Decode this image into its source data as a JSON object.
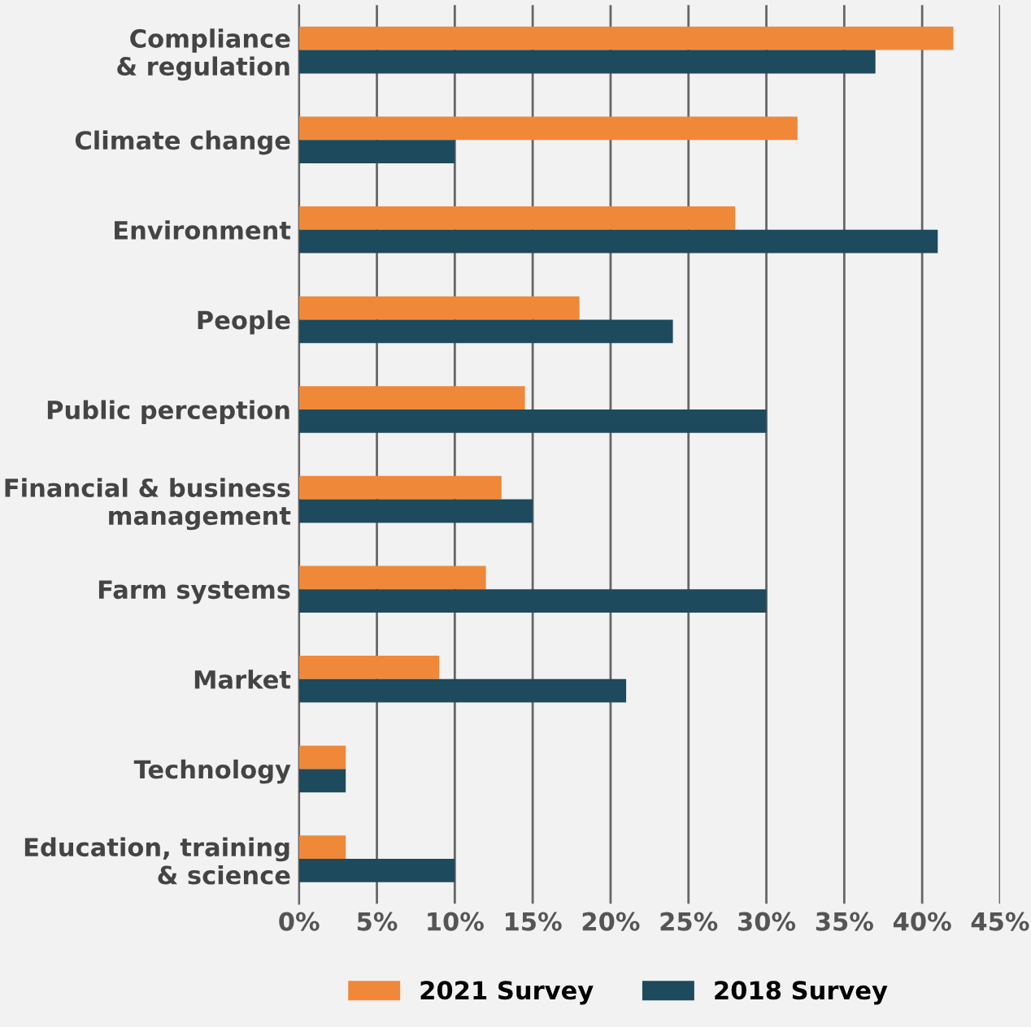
{
  "chart_data": {
    "type": "bar",
    "orientation": "horizontal",
    "categories": [
      "Compliance\n& regulation",
      "Climate change",
      "Environment",
      "People",
      "Public perception",
      "Financial & business\nmanagement",
      "Farm systems",
      "Market",
      "Technology",
      "Education, training\n& science"
    ],
    "series": [
      {
        "name": "2021 Survey",
        "color": "#f0883a",
        "values": [
          42,
          32,
          28,
          18,
          14.5,
          13,
          12,
          9,
          3,
          3
        ]
      },
      {
        "name": "2018 Survey",
        "color": "#1d4a5c",
        "values": [
          37,
          10,
          41,
          24,
          30,
          15,
          30,
          21,
          3,
          10
        ]
      }
    ],
    "xlim": [
      0,
      45
    ],
    "xticks": [
      {
        "value": 0,
        "label": "0%"
      },
      {
        "value": 5,
        "label": "5%"
      },
      {
        "value": 10,
        "label": "10%"
      },
      {
        "value": 15,
        "label": "15%"
      },
      {
        "value": 20,
        "label": "20%"
      },
      {
        "value": 25,
        "label": "25%"
      },
      {
        "value": 30,
        "label": "30%"
      },
      {
        "value": 35,
        "label": "35%"
      },
      {
        "value": 40,
        "label": "40%"
      },
      {
        "value": 45,
        "label": "45%"
      }
    ],
    "grid": "x",
    "legend": "bottom"
  }
}
